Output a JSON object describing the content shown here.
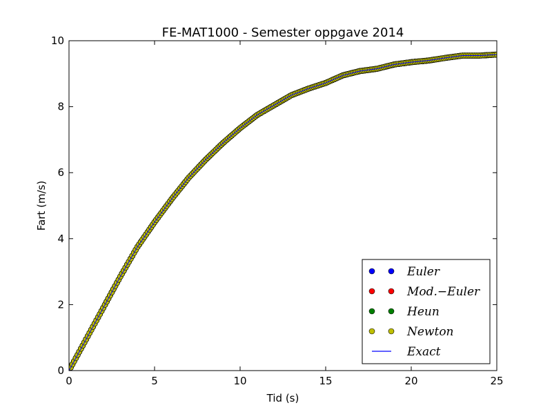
{
  "chart_data": {
    "type": "scatter",
    "title": "FE-MAT1000 - Semester oppgave 2014",
    "xlabel": "Tid (s)",
    "ylabel": "Fart (m/s)",
    "xlim": [
      0,
      25
    ],
    "ylim": [
      0,
      10
    ],
    "xticks": [
      "0",
      "5",
      "10",
      "15",
      "20",
      "25"
    ],
    "yticks": [
      "0",
      "2",
      "4",
      "6",
      "8",
      "10"
    ],
    "grid": false,
    "legend_position": "lower-right",
    "curve": {
      "x": [
        0,
        1,
        2,
        3,
        4,
        5,
        6,
        7,
        8,
        9,
        10,
        11,
        12,
        13,
        14,
        15,
        16,
        17,
        18,
        19,
        20,
        21,
        22,
        23,
        24,
        25
      ],
      "y": [
        0,
        0.95,
        1.9,
        2.85,
        3.75,
        4.5,
        5.2,
        5.85,
        6.4,
        6.9,
        7.35,
        7.75,
        8.05,
        8.35,
        8.55,
        8.72,
        8.95,
        9.08,
        9.15,
        9.28,
        9.35,
        9.4,
        9.48,
        9.55,
        9.55,
        9.58
      ]
    },
    "series": [
      {
        "name": "Euler",
        "kind": "marker",
        "color": "#0000ff"
      },
      {
        "name": "Mod.−Euler",
        "kind": "marker",
        "color": "#ff0000"
      },
      {
        "name": "Heun",
        "kind": "marker",
        "color": "#008000"
      },
      {
        "name": "Newton",
        "kind": "marker",
        "color": "#bfbf00"
      },
      {
        "name": "Exact",
        "kind": "line",
        "color": "#0000ff"
      }
    ]
  }
}
